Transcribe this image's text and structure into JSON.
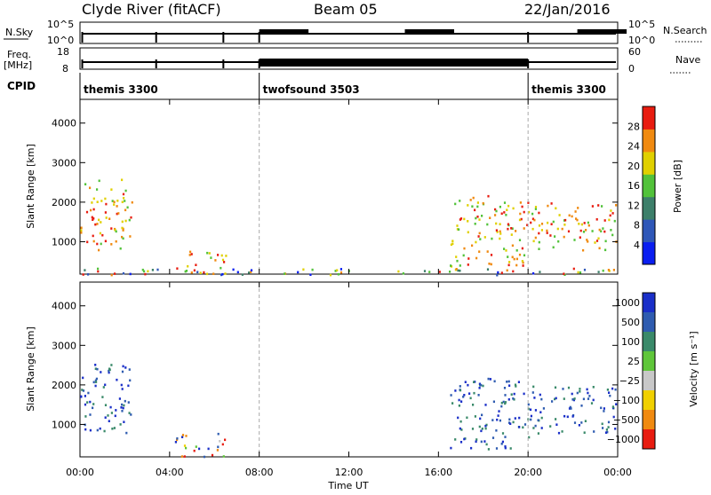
{
  "header": {
    "title": "Clyde River (fitACF)",
    "beam": "Beam 05",
    "date": "22/Jan/2016"
  },
  "top_panels": {
    "nsky_label": "N.Sky",
    "nsky_left_ticks": [
      "10^5",
      "10^0"
    ],
    "nsearch_label": "N.Search",
    "nsearch_right_ticks": [
      "10^5",
      "10^0"
    ],
    "freq_label_1": "Freq.",
    "freq_label_2": "[MHz]",
    "freq_ticks": [
      "18",
      "8"
    ],
    "nave_label": "Nave",
    "nave_ticks": [
      "60",
      "0"
    ],
    "cpid_label": "CPID",
    "cpid_segments": [
      {
        "name": "themis 3300",
        "start_hour": 0,
        "end_hour": 8
      },
      {
        "name": "twofsound 3503",
        "start_hour": 8,
        "end_hour": 20
      },
      {
        "name": "themis 3300",
        "start_hour": 20,
        "end_hour": 24
      }
    ]
  },
  "x_axis": {
    "label": "Time UT",
    "ticks": [
      "00:00",
      "04:00",
      "08:00",
      "12:00",
      "16:00",
      "20:00",
      "00:00"
    ]
  },
  "chart_data": [
    {
      "type": "heatmap",
      "title": "",
      "ylabel": "Slant Range [km]",
      "xlabel": "Time UT",
      "xlim_hours": [
        0,
        24
      ],
      "ylim": [
        180,
        4600
      ],
      "yticks": [
        "1000",
        "2000",
        "3000",
        "4000"
      ],
      "colorbar": {
        "label": "Power [dB]",
        "ticks": [
          "4",
          "8",
          "12",
          "16",
          "20",
          "24",
          "28"
        ],
        "range": [
          0,
          30
        ],
        "colors": [
          "#0a1ef0",
          "#2f57b8",
          "#3d7f6a",
          "#52c23a",
          "#e0d000",
          "#f08a10",
          "#e81c10"
        ]
      },
      "features": [
        {
          "start_hour": 0.0,
          "end_hour": 2.3,
          "range_min": 800,
          "range_max": 2600,
          "level": "high"
        },
        {
          "start_hour": 4.2,
          "end_hour": 6.5,
          "range_min": 200,
          "range_max": 800,
          "level": "high"
        },
        {
          "start_hour": 0.0,
          "end_hour": 24.0,
          "range_min": 180,
          "range_max": 350,
          "level": "mixed"
        },
        {
          "start_hour": 16.5,
          "end_hour": 20.0,
          "range_min": 400,
          "range_max": 2200,
          "level": "high"
        },
        {
          "start_hour": 20.0,
          "end_hour": 24.0,
          "range_min": 800,
          "range_max": 2000,
          "level": "high"
        }
      ]
    },
    {
      "type": "heatmap",
      "title": "",
      "ylabel": "Slant Range [km]",
      "xlabel": "Time UT",
      "xlim_hours": [
        0,
        24
      ],
      "ylim": [
        180,
        4600
      ],
      "yticks": [
        "1000",
        "2000",
        "3000",
        "4000"
      ],
      "colorbar": {
        "label": "Velocity [m s⁻¹]",
        "ticks": [
          "1000",
          "500",
          "100",
          "25",
          "−25",
          "−100",
          "−500",
          "−1000"
        ],
        "range": [
          -1200,
          1200
        ],
        "colors": [
          "#1a2fc8",
          "#2f5cb0",
          "#3a8a6a",
          "#5fc63a",
          "#c8c8c8",
          "#f0d000",
          "#f08a10",
          "#e81c10"
        ]
      },
      "features": [
        {
          "start_hour": 0.0,
          "end_hour": 2.3,
          "range_min": 800,
          "range_max": 2600,
          "sign": "toward"
        },
        {
          "start_hour": 4.2,
          "end_hour": 6.5,
          "range_min": 200,
          "range_max": 800,
          "sign": "mixed"
        },
        {
          "start_hour": 16.5,
          "end_hour": 20.0,
          "range_min": 400,
          "range_max": 2200,
          "sign": "toward"
        },
        {
          "start_hour": 20.0,
          "end_hour": 24.0,
          "range_min": 800,
          "range_max": 2000,
          "sign": "toward"
        }
      ]
    }
  ]
}
